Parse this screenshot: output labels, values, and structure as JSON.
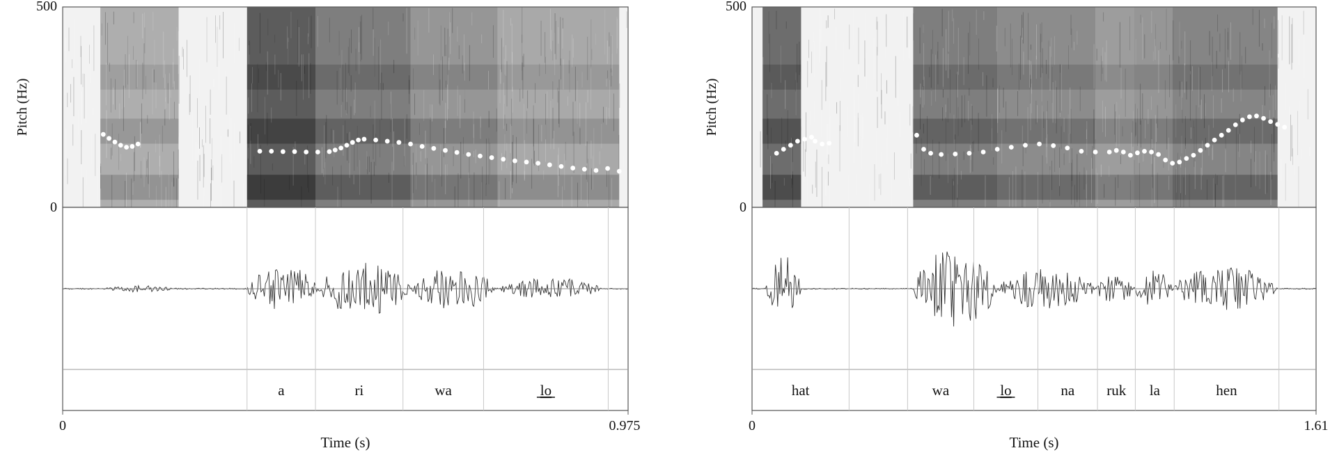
{
  "chart_data": [
    {
      "type": "line",
      "panel": "left",
      "ylabel": "Pitch (Hz)",
      "xlabel": "Time (s)",
      "ylim": [
        0,
        500
      ],
      "xlim": [
        0,
        0.9753
      ],
      "yticks": [
        "0",
        "500"
      ],
      "xticks": [
        "0",
        "0.9753"
      ],
      "pitch_x": [
        0.07,
        0.08,
        0.09,
        0.1,
        0.11,
        0.12,
        0.13,
        0.34,
        0.36,
        0.38,
        0.4,
        0.42,
        0.44,
        0.46,
        0.47,
        0.48,
        0.49,
        0.5,
        0.51,
        0.52,
        0.54,
        0.56,
        0.58,
        0.6,
        0.62,
        0.64,
        0.66,
        0.68,
        0.7,
        0.72,
        0.74,
        0.76,
        0.78,
        0.8,
        0.82,
        0.84,
        0.86,
        0.88,
        0.9,
        0.92,
        0.94,
        0.96
      ],
      "pitch_y": [
        182,
        172,
        163,
        155,
        150,
        152,
        158,
        140,
        140,
        139,
        139,
        138,
        138,
        139,
        143,
        148,
        155,
        162,
        168,
        170,
        168,
        165,
        162,
        158,
        152,
        147,
        142,
        137,
        132,
        128,
        124,
        120,
        116,
        113,
        110,
        106,
        102,
        98,
        95,
        92,
        97,
        90
      ],
      "syllables": [
        {
          "start": 0.0,
          "end": 0.318,
          "label": ""
        },
        {
          "start": 0.318,
          "end": 0.436,
          "label": "a"
        },
        {
          "start": 0.436,
          "end": 0.587,
          "label": "ri"
        },
        {
          "start": 0.587,
          "end": 0.726,
          "label": "wa"
        },
        {
          "start": 0.726,
          "end": 0.941,
          "label": "lo",
          "underlined": true
        },
        {
          "start": 0.941,
          "end": 0.9753,
          "label": ""
        }
      ]
    },
    {
      "type": "line",
      "panel": "right",
      "ylabel": "Pitch (Hz)",
      "xlabel": "Time (s)",
      "ylim": [
        0,
        500
      ],
      "xlim": [
        0,
        1.61
      ],
      "yticks": [
        "0",
        "500"
      ],
      "xticks": [
        "0",
        "1.61"
      ],
      "pitch_x": [
        0.07,
        0.09,
        0.11,
        0.13,
        0.15,
        0.17,
        0.18,
        0.2,
        0.22,
        0.47,
        0.49,
        0.51,
        0.54,
        0.58,
        0.62,
        0.66,
        0.7,
        0.74,
        0.78,
        0.82,
        0.86,
        0.9,
        0.94,
        0.98,
        1.02,
        1.04,
        1.06,
        1.08,
        1.1,
        1.12,
        1.14,
        1.16,
        1.18,
        1.2,
        1.22,
        1.24,
        1.26,
        1.28,
        1.3,
        1.32,
        1.34,
        1.36,
        1.38,
        1.4,
        1.42,
        1.44,
        1.46,
        1.48,
        1.5,
        1.52
      ],
      "pitch_y": [
        135,
        145,
        155,
        165,
        170,
        175,
        165,
        158,
        160,
        180,
        145,
        135,
        132,
        133,
        135,
        138,
        145,
        150,
        155,
        158,
        154,
        148,
        140,
        138,
        138,
        142,
        138,
        130,
        136,
        140,
        138,
        132,
        118,
        110,
        113,
        122,
        130,
        142,
        155,
        168,
        180,
        192,
        206,
        218,
        226,
        228,
        222,
        214,
        207,
        200
      ],
      "syllables": [
        {
          "start": 0.0,
          "end": 0.277,
          "label": "hat"
        },
        {
          "start": 0.277,
          "end": 0.444,
          "label": ""
        },
        {
          "start": 0.444,
          "end": 0.633,
          "label": "wa"
        },
        {
          "start": 0.633,
          "end": 0.816,
          "label": "lo",
          "underlined": true
        },
        {
          "start": 0.816,
          "end": 0.986,
          "label": "na"
        },
        {
          "start": 0.986,
          "end": 1.094,
          "label": "ruk"
        },
        {
          "start": 1.094,
          "end": 1.205,
          "label": "la"
        },
        {
          "start": 1.205,
          "end": 1.504,
          "label": "hen"
        },
        {
          "start": 1.504,
          "end": 1.61,
          "label": ""
        }
      ]
    }
  ]
}
